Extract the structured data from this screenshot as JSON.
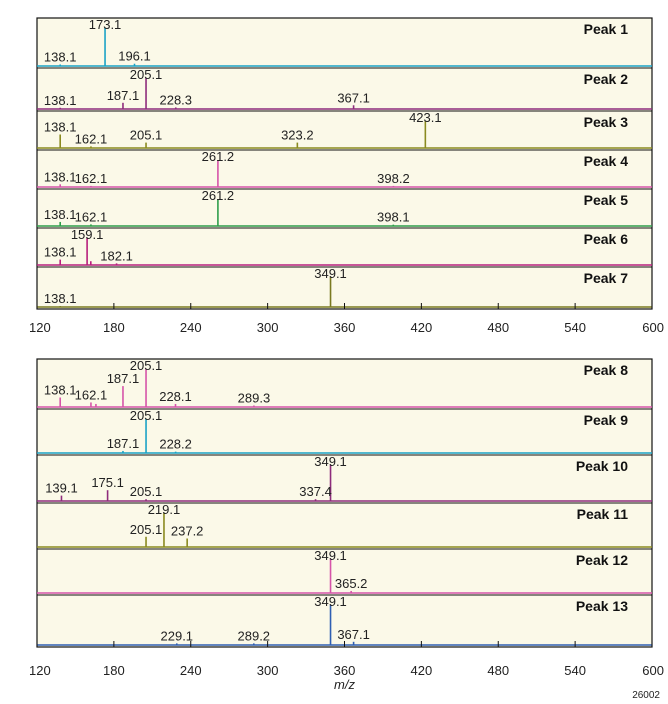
{
  "figure_id": "26002",
  "chart_data": [
    {
      "type": "line",
      "title": "",
      "xlabel": "",
      "xlim": [
        120,
        600
      ],
      "xticks": [
        120,
        180,
        240,
        300,
        360,
        420,
        480,
        540,
        600
      ],
      "panels": [
        {
          "name": "Peak 1",
          "color": "#1ba3c6",
          "labels": [
            {
              "x": 138.1
            },
            {
              "x": 173.1
            },
            {
              "x": 196.1
            }
          ],
          "peaks": [
            {
              "x": 173.1,
              "y": 100
            },
            {
              "x": 196.1,
              "y": 6
            },
            {
              "x": 138.1,
              "y": 4
            }
          ]
        },
        {
          "name": "Peak 2",
          "color": "#8e2c7c",
          "labels": [
            {
              "x": 138.1
            },
            {
              "x": 187.1
            },
            {
              "x": 205.1
            },
            {
              "x": 228.3
            },
            {
              "x": 367.1
            }
          ],
          "peaks": [
            {
              "x": 205.1,
              "y": 100
            },
            {
              "x": 187.1,
              "y": 20
            },
            {
              "x": 367.1,
              "y": 12
            },
            {
              "x": 228.3,
              "y": 5
            },
            {
              "x": 138.1,
              "y": 4
            }
          ]
        },
        {
          "name": "Peak 3",
          "color": "#8a8a1f",
          "labels": [
            {
              "x": 138.1
            },
            {
              "x": 162.1
            },
            {
              "x": 205.1
            },
            {
              "x": 323.2
            },
            {
              "x": 423.1
            }
          ],
          "peaks": [
            {
              "x": 423.1,
              "y": 100
            },
            {
              "x": 138.1,
              "y": 50
            },
            {
              "x": 205.1,
              "y": 20
            },
            {
              "x": 323.2,
              "y": 20
            },
            {
              "x": 162.1,
              "y": 6
            }
          ]
        },
        {
          "name": "Peak 4",
          "color": "#d654a9",
          "labels": [
            {
              "x": 138.1
            },
            {
              "x": 162.1
            },
            {
              "x": 261.2
            },
            {
              "x": 398.2
            }
          ],
          "peaks": [
            {
              "x": 261.2,
              "y": 100
            },
            {
              "x": 138.1,
              "y": 10
            },
            {
              "x": 162.1,
              "y": 4
            },
            {
              "x": 398.2,
              "y": 4
            }
          ]
        },
        {
          "name": "Peak 5",
          "color": "#2e9e4a",
          "labels": [
            {
              "x": 138.1
            },
            {
              "x": 162.1
            },
            {
              "x": 261.2
            },
            {
              "x": 398.1
            }
          ],
          "peaks": [
            {
              "x": 261.2,
              "y": 100
            },
            {
              "x": 138.1,
              "y": 15
            },
            {
              "x": 162.1,
              "y": 6
            },
            {
              "x": 398.1,
              "y": 5
            }
          ]
        },
        {
          "name": "Peak 6",
          "color": "#b8207d",
          "labels": [
            {
              "x": 138.1
            },
            {
              "x": 159.1
            },
            {
              "x": 182.1
            }
          ],
          "peaks": [
            {
              "x": 159.1,
              "y": 100
            },
            {
              "x": 138.1,
              "y": 20
            },
            {
              "x": 162.0,
              "y": 14
            },
            {
              "x": 182.1,
              "y": 6
            }
          ]
        },
        {
          "name": "Peak 7",
          "color": "#7a7a20",
          "labels": [
            {
              "x": 138.1
            },
            {
              "x": 349.1
            }
          ],
          "peaks": [
            {
              "x": 349.1,
              "y": 100
            },
            {
              "x": 138.1,
              "y": 3
            }
          ]
        }
      ]
    },
    {
      "type": "line",
      "title": "",
      "xlabel": "m/z",
      "xlim": [
        120,
        600
      ],
      "xticks": [
        120,
        180,
        240,
        300,
        360,
        420,
        480,
        540,
        600
      ],
      "panels": [
        {
          "name": "Peak 8",
          "color": "#d654a9",
          "labels": [
            {
              "x": 138.1
            },
            {
              "x": 162.1
            },
            {
              "x": 187.1
            },
            {
              "x": 205.1
            },
            {
              "x": 228.1
            },
            {
              "x": 289.3
            }
          ],
          "peaks": [
            {
              "x": 205.1,
              "y": 100
            },
            {
              "x": 187.1,
              "y": 55
            },
            {
              "x": 138.1,
              "y": 25
            },
            {
              "x": 162.1,
              "y": 12
            },
            {
              "x": 166.0,
              "y": 8
            },
            {
              "x": 228.1,
              "y": 8
            },
            {
              "x": 289.3,
              "y": 4
            }
          ]
        },
        {
          "name": "Peak 9",
          "color": "#1ba3c6",
          "labels": [
            {
              "x": 187.1
            },
            {
              "x": 205.1
            },
            {
              "x": 228.2
            }
          ],
          "peaks": [
            {
              "x": 205.1,
              "y": 100
            },
            {
              "x": 187.1,
              "y": 6
            },
            {
              "x": 228.2,
              "y": 4
            }
          ]
        },
        {
          "name": "Peak 10",
          "color": "#8e2c7c",
          "labels": [
            {
              "x": 139.1
            },
            {
              "x": 175.1
            },
            {
              "x": 205.1
            },
            {
              "x": 337.4
            },
            {
              "x": 349.1
            }
          ],
          "peaks": [
            {
              "x": 349.1,
              "y": 100
            },
            {
              "x": 175.1,
              "y": 30
            },
            {
              "x": 139.1,
              "y": 15
            },
            {
              "x": 205.1,
              "y": 5
            },
            {
              "x": 337.4,
              "y": 5
            }
          ]
        },
        {
          "name": "Peak 11",
          "color": "#8a8a1f",
          "labels": [
            {
              "x": 205.1
            },
            {
              "x": 219.1
            },
            {
              "x": 237.2
            }
          ],
          "peaks": [
            {
              "x": 219.1,
              "y": 100
            },
            {
              "x": 205.1,
              "y": 30
            },
            {
              "x": 237.2,
              "y": 25
            }
          ]
        },
        {
          "name": "Peak 12",
          "color": "#d654a9",
          "labels": [
            {
              "x": 349.1
            },
            {
              "x": 365.2
            }
          ],
          "peaks": [
            {
              "x": 349.1,
              "y": 100
            },
            {
              "x": 365.2,
              "y": 6
            }
          ]
        },
        {
          "name": "Peak 13",
          "color": "#2f5fb3",
          "labels": [
            {
              "x": 229.1
            },
            {
              "x": 289.2
            },
            {
              "x": 349.1
            },
            {
              "x": 367.1
            }
          ],
          "peaks": [
            {
              "x": 349.1,
              "y": 100
            },
            {
              "x": 367.1,
              "y": 8
            },
            {
              "x": 229.1,
              "y": 4
            },
            {
              "x": 289.2,
              "y": 4
            }
          ]
        }
      ]
    }
  ]
}
